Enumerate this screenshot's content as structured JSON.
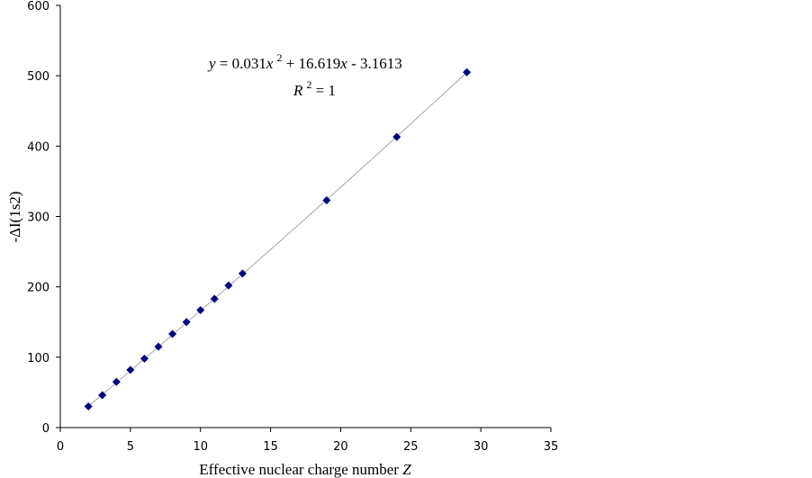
{
  "chart_data": {
    "type": "scatter",
    "xlabel": "Effective nuclear charge number ",
    "xlabel_var": "Z",
    "ylabel": "-ΔI(1s2)",
    "xlim": [
      0,
      35
    ],
    "ylim": [
      0,
      600
    ],
    "xticks": [
      "0",
      "5",
      "10",
      "15",
      "20",
      "25",
      "30",
      "35"
    ],
    "yticks": [
      "0",
      "100",
      "200",
      "300",
      "400",
      "500",
      "600"
    ],
    "grid": false,
    "legend": "none",
    "marker_color": "#000080",
    "trendline_color": "#a6a6a6",
    "series": [
      {
        "x": [
          2,
          3,
          4,
          5,
          6,
          7,
          8,
          9,
          10,
          11,
          12,
          13,
          19,
          24,
          29
        ],
        "y": [
          30,
          46,
          65,
          82,
          98,
          115,
          133,
          150,
          167,
          183,
          202,
          219,
          323,
          413,
          505
        ]
      }
    ],
    "trendline": {
      "type": "polynomial",
      "degree": 2,
      "coefficients": {
        "a": 0.031,
        "b": 16.619,
        "c": -3.1613
      },
      "x_range": [
        2,
        29
      ],
      "equation": {
        "y": "y",
        "part1": " = 0.031",
        "x1": "x",
        "exp": "2",
        "part2": " + 16.619",
        "x2": "x",
        "part3": " - 3.1613"
      },
      "r_squared": {
        "r": "R",
        "exp": "2",
        "rest": " = 1"
      }
    }
  }
}
